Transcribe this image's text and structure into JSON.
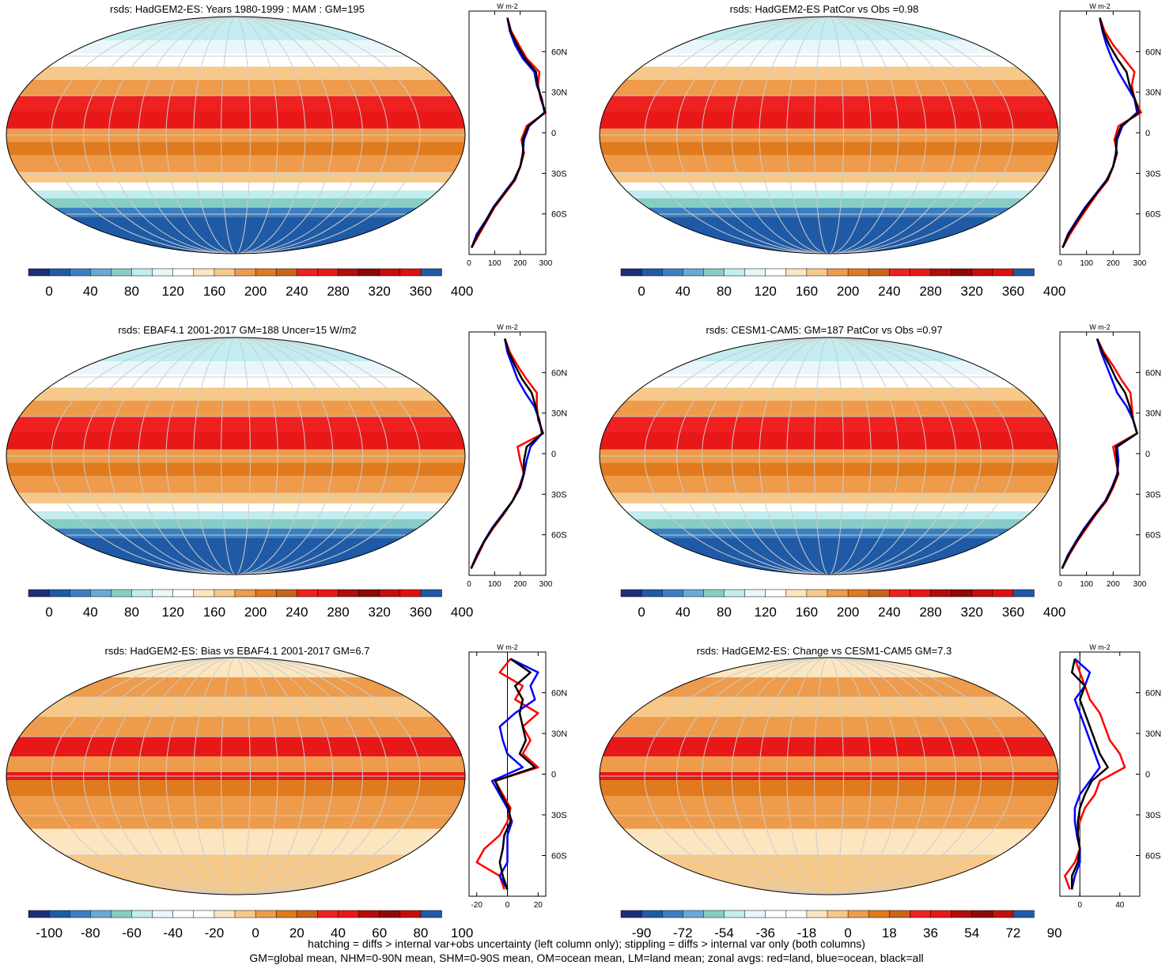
{
  "footer": {
    "line1": "hatching = diffs > internal var+obs uncertainty (left column only); stippling = diffs > internal var only (both columns)",
    "line2": "GM=global mean, NHM=0-90N mean, SHM=0-90S mean, OM=ocean mean, LM=land mean; zonal avgs: red=land, blue=ocean, black=all"
  },
  "chart_data": [
    {
      "id": "p1",
      "type": "heatmap",
      "title": "rsds: HadGEM2-ES: Years 1980-1999 : MAM : GM=195",
      "field": "rsds",
      "colorbar": {
        "ticks": [
          "0",
          "40",
          "80",
          "120",
          "160",
          "200",
          "240",
          "280",
          "320",
          "360",
          "400"
        ],
        "colors": [
          "#1d2f7a",
          "#1f5aa6",
          "#3a7fc2",
          "#6aa9d6",
          "#86cdc5",
          "#c2ecef",
          "#e8f8fa",
          "#ffffff",
          "#fbe6c0",
          "#f6c98a",
          "#ee9b4b",
          "#e07a1e",
          "#c8641a",
          "#ee2020",
          "#e81818",
          "#b00d0d",
          "#8c0a0a",
          "#c40e0e",
          "#e01010",
          "#1f5aa6"
        ]
      },
      "zonal": {
        "unit": "W m-2",
        "xticks": [
          0,
          100,
          200,
          300
        ],
        "xlim": [
          0,
          300
        ],
        "lat_ticks": [
          "60N",
          "30N",
          "0",
          "30S",
          "60S"
        ],
        "lat": [
          85,
          75,
          65,
          55,
          45,
          35,
          25,
          15,
          5,
          -5,
          -15,
          -25,
          -35,
          -45,
          -55,
          -65,
          -75,
          -85
        ],
        "series": [
          {
            "name": "land",
            "color": "red",
            "values": [
              150,
              165,
              195,
              225,
              275,
              270,
              280,
              300,
              225,
              205,
              215,
              200,
              180,
              140,
              100,
              70,
              40,
              10
            ]
          },
          {
            "name": "ocean",
            "color": "blue",
            "values": [
              150,
              160,
              180,
              210,
              255,
              265,
              285,
              295,
              235,
              215,
              210,
              200,
              175,
              135,
              95,
              65,
              30,
              10
            ]
          },
          {
            "name": "all",
            "color": "black",
            "values": [
              150,
              162,
              188,
              218,
              262,
              268,
              283,
              297,
              232,
              210,
              212,
              200,
              177,
              137,
              97,
              67,
              35,
              10
            ]
          }
        ]
      }
    },
    {
      "id": "p2",
      "type": "heatmap",
      "title": "rsds: HadGEM2-ES PatCor vs Obs =0.98",
      "field": "rsds",
      "colorbar": {
        "ticks": [
          "0",
          "40",
          "80",
          "120",
          "160",
          "200",
          "240",
          "280",
          "320",
          "360",
          "400"
        ],
        "colors": [
          "#1d2f7a",
          "#1f5aa6",
          "#3a7fc2",
          "#6aa9d6",
          "#86cdc5",
          "#c2ecef",
          "#e8f8fa",
          "#ffffff",
          "#fbe6c0",
          "#f6c98a",
          "#ee9b4b",
          "#e07a1e",
          "#c8641a",
          "#ee2020",
          "#e81818",
          "#b00d0d",
          "#8c0a0a",
          "#c40e0e",
          "#e01010",
          "#1f5aa6"
        ]
      },
      "zonal": {
        "unit": "W m-2",
        "xticks": [
          0,
          100,
          200,
          300
        ],
        "xlim": [
          0,
          300
        ],
        "lat_ticks": [
          "60N",
          "30N",
          "0",
          "30S",
          "60S"
        ],
        "lat": [
          85,
          75,
          65,
          55,
          45,
          35,
          25,
          15,
          5,
          -5,
          -15,
          -25,
          -35,
          -45,
          -55,
          -65,
          -75,
          -85
        ],
        "series": [
          {
            "name": "land",
            "color": "red",
            "values": [
              150,
              168,
              200,
              240,
              280,
              270,
              280,
              305,
              220,
              205,
              215,
              200,
              180,
              140,
              105,
              70,
              38,
              10
            ]
          },
          {
            "name": "ocean",
            "color": "blue",
            "values": [
              150,
              160,
              175,
              195,
              220,
              250,
              280,
              290,
              235,
              215,
              210,
              200,
              175,
              135,
              95,
              62,
              30,
              10
            ]
          },
          {
            "name": "all",
            "color": "black",
            "values": [
              150,
              163,
              185,
              215,
              250,
              262,
              282,
              296,
              230,
              210,
              212,
              200,
              177,
              137,
              98,
              65,
              33,
              10
            ]
          }
        ]
      }
    },
    {
      "id": "p3",
      "type": "heatmap",
      "title": "rsds: EBAF4.1 2001-2017 GM=188 Uncer=15 W/m2",
      "field": "rsds",
      "colorbar": {
        "ticks": [
          "0",
          "40",
          "80",
          "120",
          "160",
          "200",
          "240",
          "280",
          "320",
          "360",
          "400"
        ],
        "colors": [
          "#1d2f7a",
          "#1f5aa6",
          "#3a7fc2",
          "#6aa9d6",
          "#86cdc5",
          "#c2ecef",
          "#e8f8fa",
          "#ffffff",
          "#fbe6c0",
          "#f6c98a",
          "#ee9b4b",
          "#e07a1e",
          "#c8641a",
          "#ee2020",
          "#e81818",
          "#b00d0d",
          "#8c0a0a",
          "#c40e0e",
          "#e01010",
          "#1f5aa6"
        ]
      },
      "zonal": {
        "unit": "W m-2",
        "xticks": [
          0,
          100,
          200,
          300
        ],
        "xlim": [
          0,
          300
        ],
        "lat_ticks": [
          "60N",
          "30N",
          "0",
          "30S",
          "60S"
        ],
        "lat": [
          85,
          75,
          65,
          55,
          45,
          35,
          25,
          15,
          5,
          -5,
          -15,
          -25,
          -35,
          -45,
          -55,
          -65,
          -75,
          -85
        ],
        "series": [
          {
            "name": "land",
            "color": "red",
            "values": [
              140,
              160,
              190,
              225,
              265,
              265,
              270,
              290,
              190,
              200,
              215,
              195,
              170,
              135,
              95,
              60,
              35,
              8
            ]
          },
          {
            "name": "ocean",
            "color": "blue",
            "values": [
              140,
              150,
              170,
              190,
              220,
              255,
              275,
              285,
              240,
              225,
              215,
              200,
              170,
              130,
              90,
              58,
              30,
              8
            ]
          },
          {
            "name": "all",
            "color": "black",
            "values": [
              140,
              155,
              180,
              208,
              245,
              260,
              273,
              288,
              225,
              215,
              213,
              198,
              170,
              132,
              92,
              59,
              32,
              8
            ]
          }
        ]
      }
    },
    {
      "id": "p4",
      "type": "heatmap",
      "title": "rsds: CESM1-CAM5: GM=187 PatCor vs Obs =0.97",
      "field": "rsds",
      "colorbar": {
        "ticks": [
          "0",
          "40",
          "80",
          "120",
          "160",
          "200",
          "240",
          "280",
          "320",
          "360",
          "400"
        ],
        "colors": [
          "#1d2f7a",
          "#1f5aa6",
          "#3a7fc2",
          "#6aa9d6",
          "#86cdc5",
          "#c2ecef",
          "#e8f8fa",
          "#ffffff",
          "#fbe6c0",
          "#f6c98a",
          "#ee9b4b",
          "#e07a1e",
          "#c8641a",
          "#ee2020",
          "#e81818",
          "#b00d0d",
          "#8c0a0a",
          "#c40e0e",
          "#e01010",
          "#1f5aa6"
        ]
      },
      "zonal": {
        "unit": "W m-2",
        "xticks": [
          0,
          100,
          200,
          300
        ],
        "xlim": [
          0,
          300
        ],
        "lat_ticks": [
          "60N",
          "30N",
          "0",
          "30S",
          "60S"
        ],
        "lat": [
          85,
          75,
          65,
          55,
          45,
          35,
          25,
          15,
          5,
          -5,
          -15,
          -25,
          -35,
          -45,
          -55,
          -65,
          -75,
          -85
        ],
        "series": [
          {
            "name": "land",
            "color": "red",
            "values": [
              140,
              165,
              200,
              230,
              265,
              270,
              275,
              290,
              200,
              210,
              220,
              200,
              175,
              135,
              100,
              65,
              35,
              8
            ]
          },
          {
            "name": "ocean",
            "color": "blue",
            "values": [
              140,
              155,
              175,
              195,
              215,
              250,
              275,
              290,
              215,
              220,
              215,
              195,
              170,
              130,
              92,
              60,
              30,
              8
            ]
          },
          {
            "name": "all",
            "color": "black",
            "values": [
              140,
              160,
              188,
              212,
              245,
              262,
              275,
              290,
              210,
              215,
              217,
              197,
              172,
              132,
              95,
              62,
              32,
              8
            ]
          }
        ]
      }
    },
    {
      "id": "p5",
      "type": "heatmap",
      "title": "rsds: HadGEM2-ES: Bias vs EBAF4.1 2001-2017 GM=6.7",
      "field": "rsds bias",
      "colorbar": {
        "ticks": [
          "-100",
          "-80",
          "-60",
          "-40",
          "-20",
          "0",
          "20",
          "40",
          "60",
          "80",
          "100"
        ],
        "colors": [
          "#1d2f7a",
          "#1f5aa6",
          "#3a7fc2",
          "#6aa9d6",
          "#86cdc5",
          "#c2ecef",
          "#e8f8fa",
          "#ffffff",
          "#ffffff",
          "#fbe6c0",
          "#f6c98a",
          "#ee9b4b",
          "#e07a1e",
          "#c8641a",
          "#ee2020",
          "#e81818",
          "#b00d0d",
          "#8c0a0a",
          "#c40e0e",
          "#1f5aa6"
        ]
      },
      "zonal": {
        "unit": "W m-2",
        "xticks": [
          -20,
          0,
          20
        ],
        "xlim": [
          -25,
          25
        ],
        "lat_ticks": [
          "60N",
          "30N",
          "0",
          "30S",
          "60S"
        ],
        "lat": [
          85,
          75,
          65,
          55,
          45,
          35,
          25,
          15,
          5,
          -5,
          -15,
          -25,
          -35,
          -45,
          -55,
          -65,
          -75,
          -85
        ],
        "series": [
          {
            "name": "land",
            "color": "red",
            "values": [
              2,
              -5,
              10,
              5,
              20,
              10,
              15,
              10,
              20,
              -8,
              -3,
              2,
              0,
              -5,
              -15,
              -20,
              -5,
              -2
            ]
          },
          {
            "name": "ocean",
            "color": "blue",
            "values": [
              2,
              20,
              15,
              18,
              5,
              -5,
              -3,
              0,
              10,
              -10,
              -5,
              0,
              3,
              0,
              0,
              0,
              -5,
              0
            ]
          },
          {
            "name": "all",
            "color": "black",
            "values": [
              2,
              15,
              5,
              10,
              8,
              10,
              12,
              8,
              18,
              -8,
              -4,
              1,
              2,
              -2,
              -3,
              -5,
              -3,
              0
            ]
          }
        ]
      }
    },
    {
      "id": "p6",
      "type": "heatmap",
      "title": "rsds: HadGEM2-ES: Change vs CESM1-CAM5 GM=7.3",
      "field": "rsds change",
      "colorbar": {
        "ticks": [
          "-90",
          "-72",
          "-54",
          "-36",
          "-18",
          "0",
          "18",
          "36",
          "54",
          "72",
          "90"
        ],
        "colors": [
          "#1d2f7a",
          "#1f5aa6",
          "#3a7fc2",
          "#6aa9d6",
          "#86cdc5",
          "#c2ecef",
          "#e8f8fa",
          "#ffffff",
          "#ffffff",
          "#fbe6c0",
          "#f6c98a",
          "#ee9b4b",
          "#e07a1e",
          "#c8641a",
          "#ee2020",
          "#e81818",
          "#b00d0d",
          "#8c0a0a",
          "#c40e0e",
          "#1f5aa6"
        ]
      },
      "zonal": {
        "unit": "W m-2",
        "xticks": [
          0,
          40
        ],
        "xlim": [
          -20,
          60
        ],
        "lat_ticks": [
          "60N",
          "30N",
          "0",
          "30S",
          "60S"
        ],
        "lat": [
          85,
          75,
          65,
          55,
          45,
          35,
          25,
          15,
          5,
          -5,
          -15,
          -25,
          -35,
          -45,
          -55,
          -65,
          -75,
          -85
        ],
        "series": [
          {
            "name": "land",
            "color": "red",
            "values": [
              -5,
              0,
              5,
              10,
              20,
              25,
              30,
              40,
              45,
              20,
              15,
              5,
              0,
              -3,
              0,
              -5,
              -15,
              -10
            ]
          },
          {
            "name": "ocean",
            "color": "blue",
            "values": [
              -5,
              10,
              5,
              -5,
              0,
              5,
              10,
              15,
              20,
              10,
              0,
              -5,
              -5,
              -3,
              0,
              0,
              -5,
              -8
            ]
          },
          {
            "name": "all",
            "color": "black",
            "values": [
              -5,
              -8,
              5,
              0,
              5,
              10,
              15,
              20,
              28,
              12,
              5,
              0,
              -2,
              -2,
              0,
              -2,
              -8,
              -8
            ]
          }
        ]
      }
    }
  ]
}
